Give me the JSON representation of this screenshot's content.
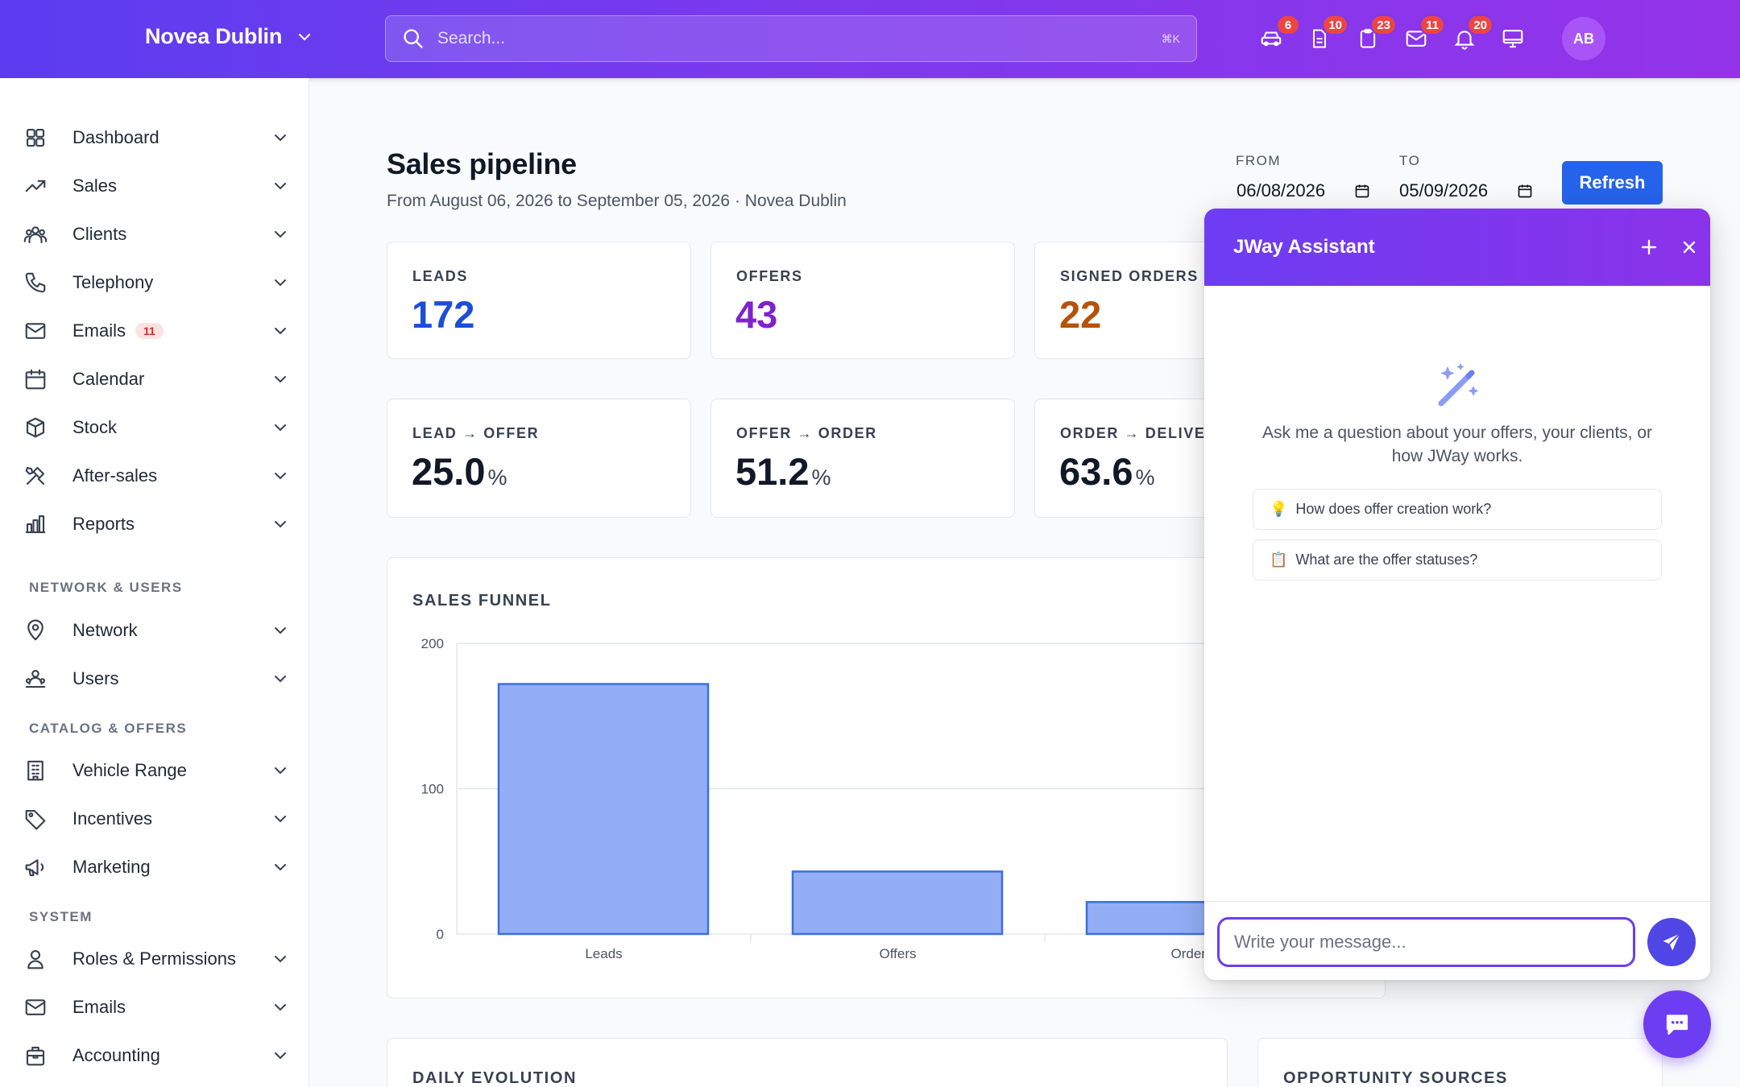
{
  "header": {
    "brand": "Novea Dublin",
    "search_placeholder": "Search...",
    "search_shortcut": "⌘K",
    "icons": [
      {
        "name": "car-icon",
        "badge": "6"
      },
      {
        "name": "document-icon",
        "badge": "10"
      },
      {
        "name": "clipboard-icon",
        "badge": "23"
      },
      {
        "name": "mail-icon",
        "badge": "11"
      },
      {
        "name": "bell-icon",
        "badge": "20"
      },
      {
        "name": "monitor-icon",
        "badge": ""
      }
    ],
    "avatar": "AB"
  },
  "sidebar": {
    "items": [
      {
        "label": "Dashboard",
        "icon": "grid-icon"
      },
      {
        "label": "Sales",
        "icon": "trending-up-icon"
      },
      {
        "label": "Clients",
        "icon": "users-icon"
      },
      {
        "label": "Telephony",
        "icon": "phone-icon"
      },
      {
        "label": "Emails",
        "icon": "mail-icon",
        "badge": "11"
      },
      {
        "label": "Calendar",
        "icon": "calendar-icon"
      },
      {
        "label": "Stock",
        "icon": "box-icon"
      },
      {
        "label": "After-sales",
        "icon": "tools-icon"
      },
      {
        "label": "Reports",
        "icon": "bar-chart-icon"
      }
    ],
    "section_network": "NETWORK & USERS",
    "network_items": [
      {
        "label": "Network",
        "icon": "map-pin-icon"
      },
      {
        "label": "Users",
        "icon": "user-group-icon"
      }
    ],
    "section_catalog": "CATALOG & OFFERS",
    "catalog_items": [
      {
        "label": "Vehicle Range",
        "icon": "building-icon"
      },
      {
        "label": "Incentives",
        "icon": "tag-icon"
      },
      {
        "label": "Marketing",
        "icon": "megaphone-icon"
      }
    ],
    "section_system": "SYSTEM",
    "system_items": [
      {
        "label": "Roles & Permissions",
        "icon": "user-icon"
      },
      {
        "label": "Emails",
        "icon": "mail-icon"
      },
      {
        "label": "Accounting",
        "icon": "briefcase-icon"
      }
    ]
  },
  "main": {
    "title": "Sales pipeline",
    "subtitle": "From August 06, 2026 to September 05, 2026 · Novea Dublin",
    "from_label": "FROM",
    "from_value": "06/08/2026",
    "to_label": "TO",
    "to_value": "05/09/2026",
    "refresh_label": "Refresh",
    "kpis": [
      {
        "title": "LEADS",
        "value": "172",
        "color": "#1d4ed8"
      },
      {
        "title": "OFFERS",
        "value": "43",
        "color": "#7e22ce"
      },
      {
        "title": "SIGNED ORDERS",
        "value": "22",
        "color": "#b45309"
      }
    ],
    "rates": [
      {
        "title": "LEAD → OFFER",
        "value": "25.0",
        "unit": "%"
      },
      {
        "title": "OFFER → ORDER",
        "value": "51.2",
        "unit": "%"
      },
      {
        "title": "ORDER → DELIVER",
        "value": "63.6",
        "unit": "%"
      }
    ],
    "funnel_title": "SALES FUNNEL",
    "daily_title": "DAILY EVOLUTION",
    "sources_title": "OPPORTUNITY SOURCES"
  },
  "chart_data": {
    "type": "bar",
    "title": "SALES FUNNEL",
    "categories": [
      "Leads",
      "Offers",
      "Orders"
    ],
    "values": [
      172,
      43,
      22
    ],
    "ylim": [
      0,
      200
    ],
    "yticks": [
      "0",
      "100",
      "200"
    ],
    "grid": true,
    "bar_color": "#93aef5",
    "bar_border": "#3b6fe0"
  },
  "assistant": {
    "title": "JWay Assistant",
    "intro": "Ask me a question about your offers, your clients, or how JWay works.",
    "suggestions": [
      {
        "emoji": "💡",
        "text": "How does offer creation work?"
      },
      {
        "emoji": "📋",
        "text": "What are the offer statuses?"
      }
    ],
    "message_placeholder": "Write your message..."
  }
}
